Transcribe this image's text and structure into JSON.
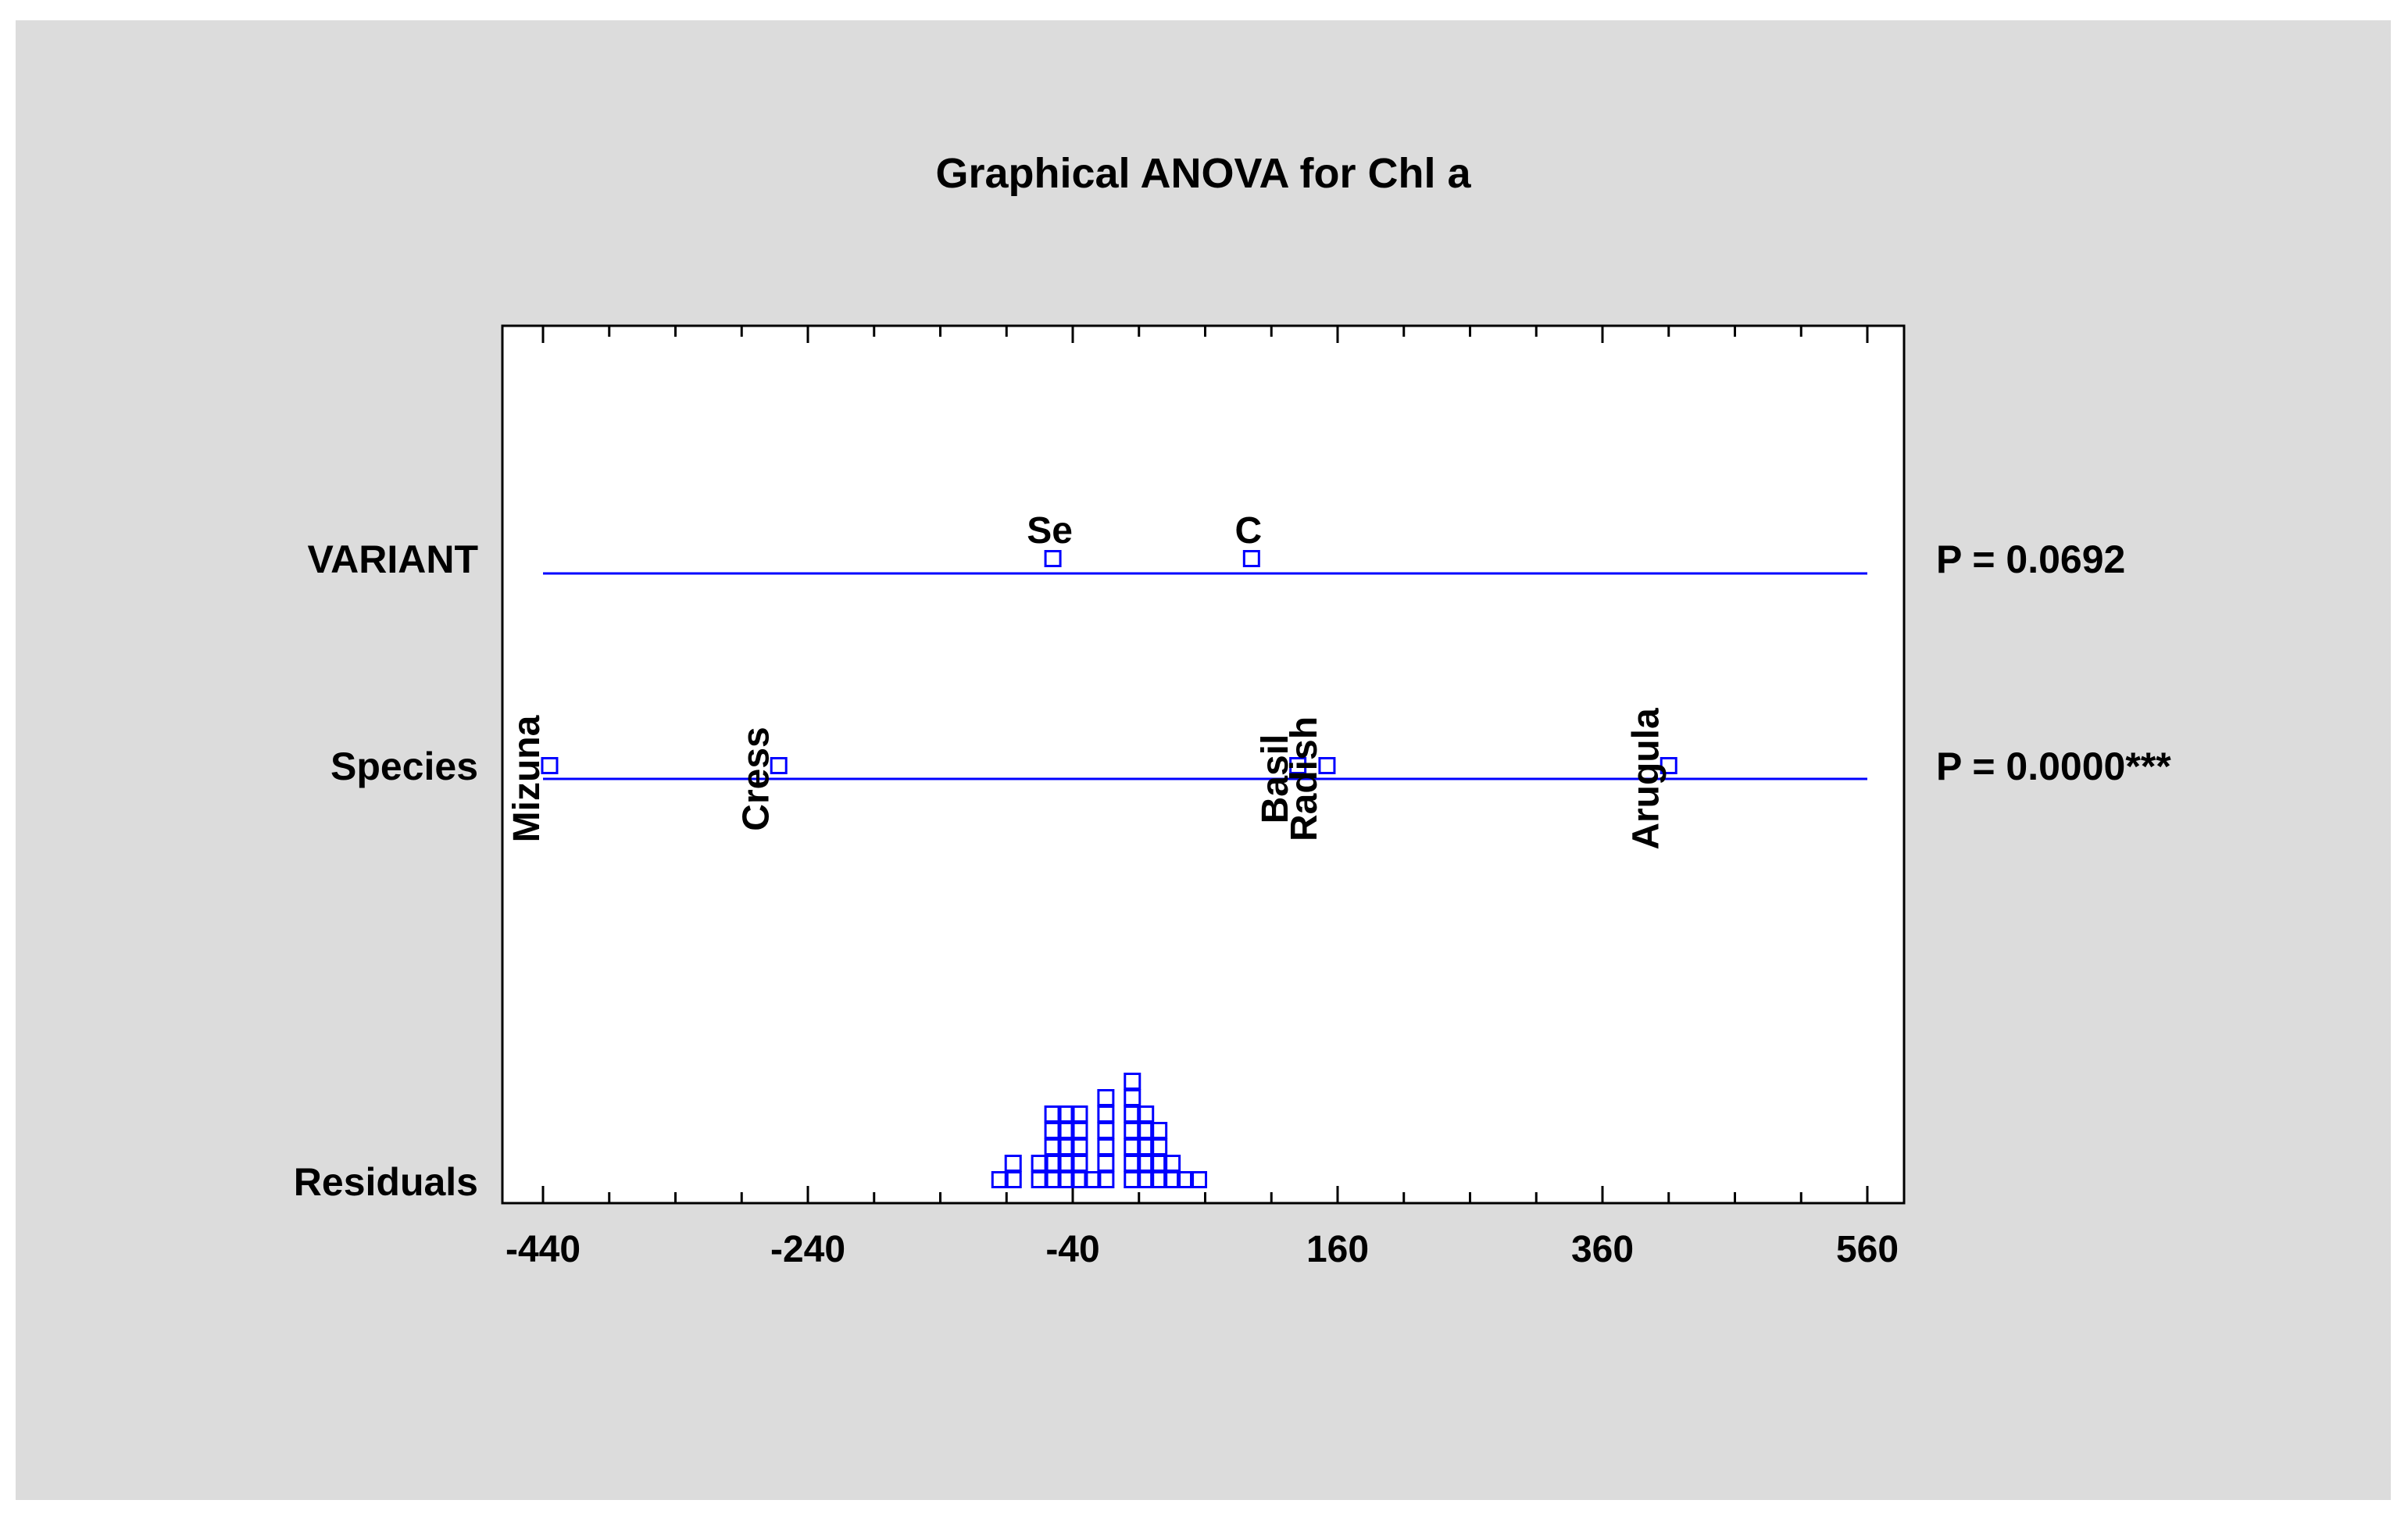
{
  "colors": {
    "page_bg": "#ffffff",
    "panel_bg": "#dcdcdc",
    "plot_bg": "#ffffff",
    "series": "#0000ff",
    "text": "#000000"
  },
  "chart_data": {
    "type": "scatter",
    "title": "Graphical ANOVA for Chl a",
    "xlim": [
      -470,
      590
    ],
    "x_ticks": [
      -440,
      -240,
      -40,
      160,
      360,
      560
    ],
    "grid": false,
    "legend": "none",
    "rows": [
      {
        "name": "VARIANT",
        "p_label": "P = 0.0692",
        "points": [
          {
            "label": "Se",
            "x": -55,
            "label_orientation": "horizontal"
          },
          {
            "label": "C",
            "x": 95,
            "label_orientation": "horizontal"
          }
        ]
      },
      {
        "name": "Species",
        "p_label": "P = 0.0000***",
        "points": [
          {
            "label": "Mizuna",
            "x": -435,
            "label_orientation": "vertical"
          },
          {
            "label": "Cress",
            "x": -262,
            "label_orientation": "vertical"
          },
          {
            "label": "Basil",
            "x": 130,
            "label_orientation": "vertical"
          },
          {
            "label": "Radish",
            "x": 152,
            "label_orientation": "vertical"
          },
          {
            "label": "Arugula",
            "x": 410,
            "label_orientation": "vertical"
          }
        ]
      }
    ],
    "residuals": {
      "name": "Residuals",
      "bin_width": 10,
      "bins": [
        {
          "x": -95,
          "count": 1
        },
        {
          "x": -85,
          "count": 2
        },
        {
          "x": -65,
          "count": 2
        },
        {
          "x": -55,
          "count": 5
        },
        {
          "x": -45,
          "count": 5
        },
        {
          "x": -35,
          "count": 5
        },
        {
          "x": -25,
          "count": 1
        },
        {
          "x": -15,
          "count": 6
        },
        {
          "x": 5,
          "count": 7
        },
        {
          "x": 15,
          "count": 5
        },
        {
          "x": 25,
          "count": 4
        },
        {
          "x": 35,
          "count": 2
        },
        {
          "x": 45,
          "count": 1
        },
        {
          "x": 55,
          "count": 1
        }
      ]
    }
  }
}
